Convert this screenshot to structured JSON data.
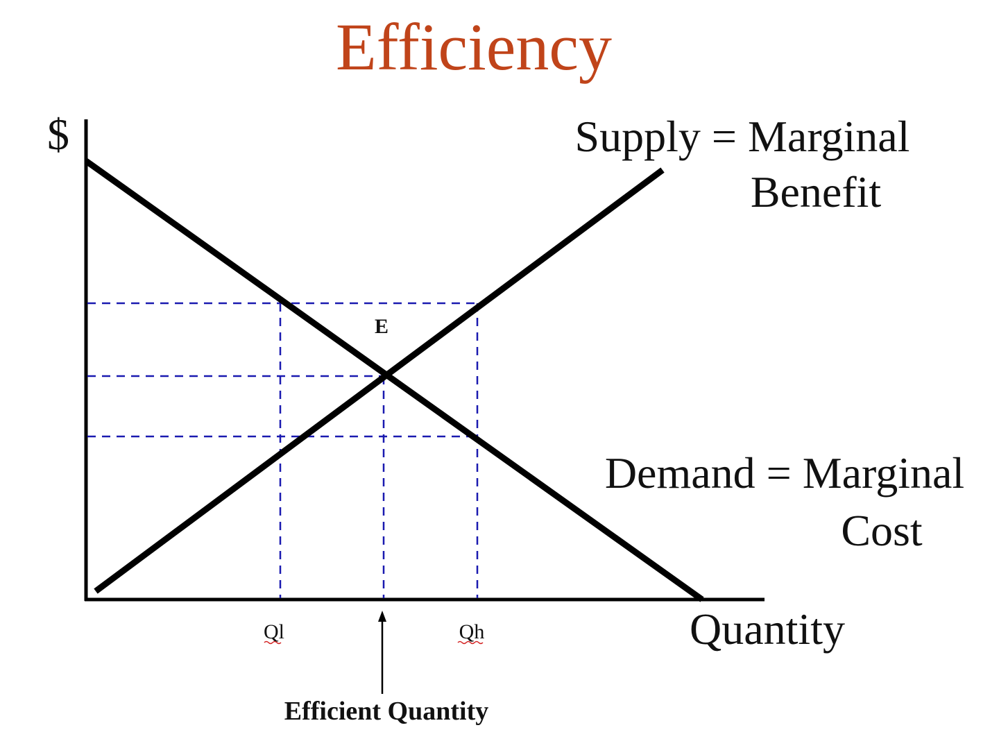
{
  "title": "Efficiency",
  "colors": {
    "title": "#c0441a",
    "curves": "#000000",
    "guides": "#1a1ab0",
    "background": "#ffffff"
  },
  "axes": {
    "y_label": "$",
    "x_label": "Quantity"
  },
  "curves": {
    "supply_label_line1": "Supply = Marginal",
    "supply_label_line2": "Benefit",
    "demand_label_line1": "Demand = Marginal",
    "demand_label_line2": "Cost"
  },
  "points": {
    "equilibrium": "E"
  },
  "x_ticks": {
    "q_low": "Ql",
    "q_high": "Qh"
  },
  "annotation": {
    "efficient_quantity": "Efficient Quantity"
  }
}
